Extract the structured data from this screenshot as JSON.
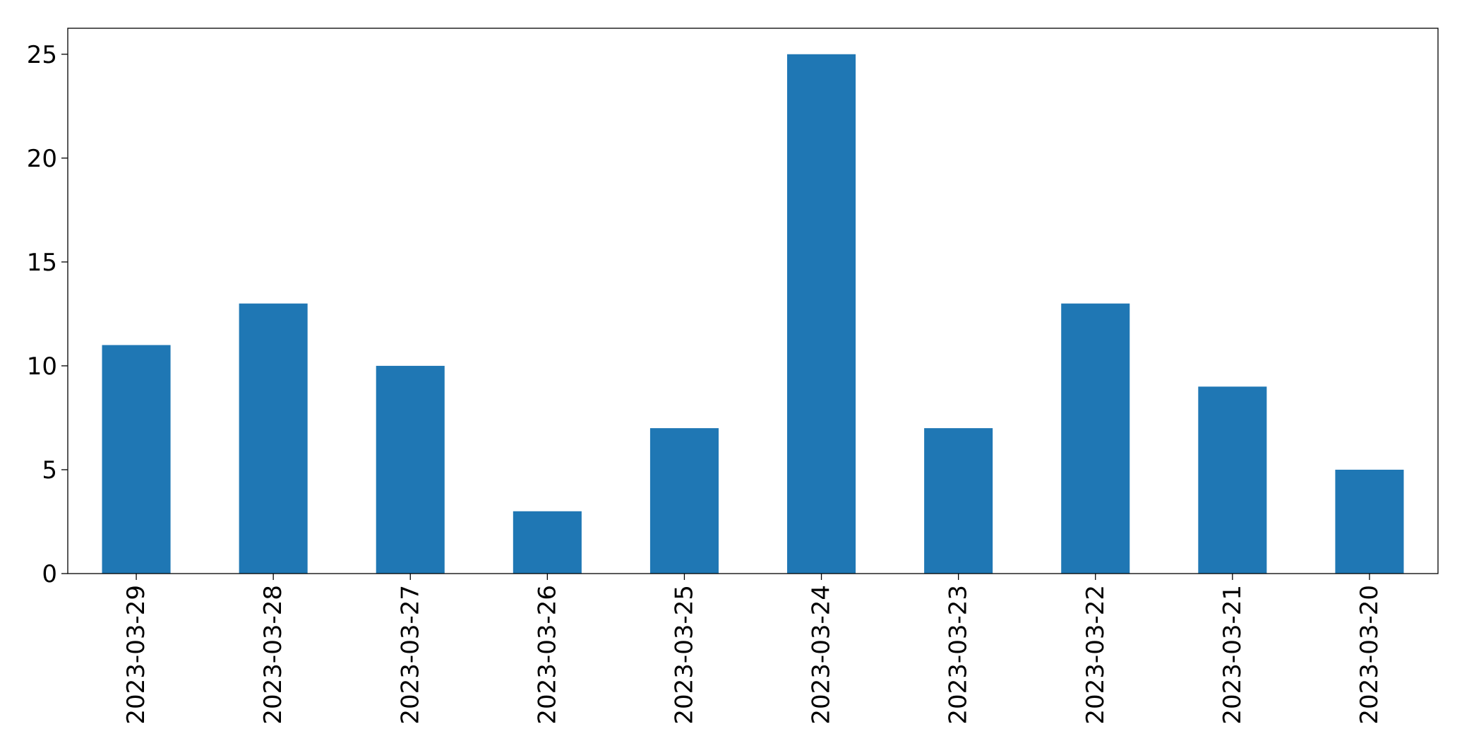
{
  "chart_data": {
    "type": "bar",
    "title": "",
    "xlabel": "",
    "ylabel": "",
    "categories": [
      "2023-03-29",
      "2023-03-28",
      "2023-03-27",
      "2023-03-26",
      "2023-03-25",
      "2023-03-24",
      "2023-03-23",
      "2023-03-22",
      "2023-03-21",
      "2023-03-20"
    ],
    "values": [
      11,
      13,
      10,
      3,
      7,
      25,
      7,
      13,
      9,
      5
    ],
    "ylim": [
      0,
      26.25
    ],
    "yticks": [
      0,
      5,
      10,
      15,
      20,
      25
    ],
    "grid": false,
    "legend": "none",
    "bar_color": "#1f77b4"
  }
}
